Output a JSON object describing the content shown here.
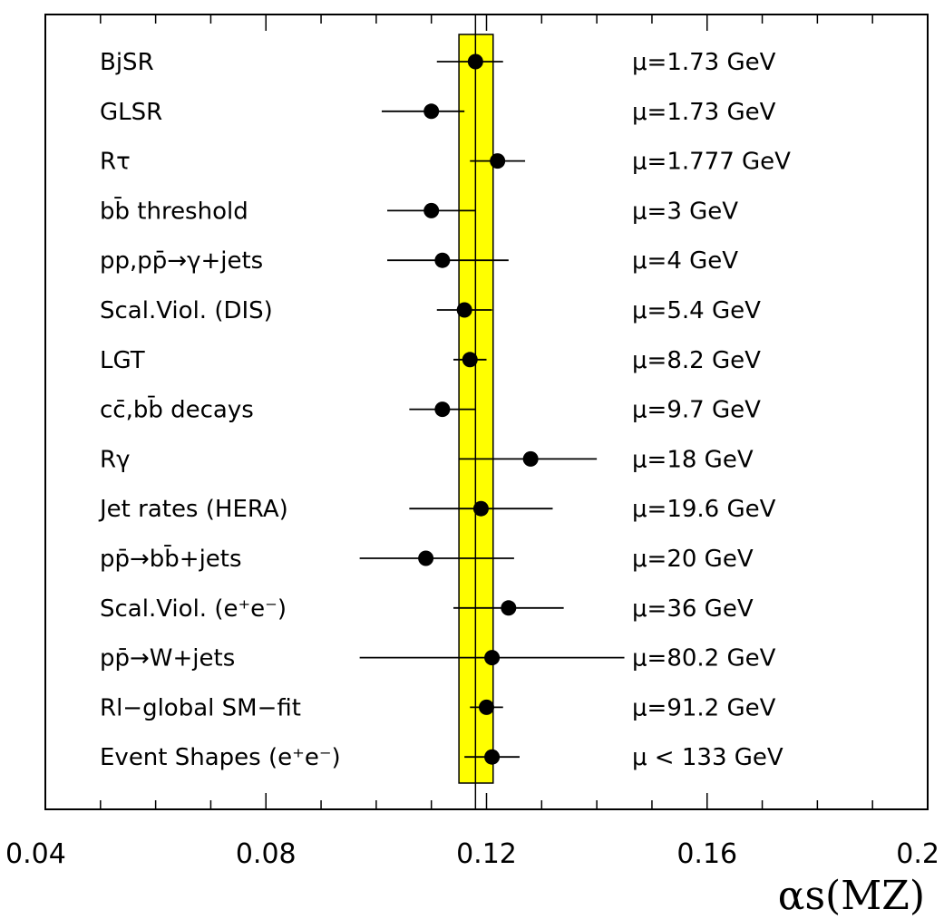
{
  "chart_data": {
    "type": "scatter",
    "xlim": [
      0.04,
      0.2
    ],
    "x_ticks": [
      "0.04",
      "0.08",
      "0.12",
      "0.16",
      "0.2"
    ],
    "xlabel": "αs(MZ)",
    "band": {
      "center": 0.118,
      "low": 0.115,
      "high": 0.1212,
      "color": "#ffff00"
    },
    "measurements": [
      {
        "label": "BjSR",
        "scale": "μ=1.73 GeV",
        "value": 0.118,
        "err_low": 0.111,
        "err_high": 0.123
      },
      {
        "label": "GLSR",
        "scale": "μ=1.73 GeV",
        "value": 0.11,
        "err_low": 0.101,
        "err_high": 0.116
      },
      {
        "label": "Rτ",
        "scale": "μ=1.777 GeV",
        "value": 0.122,
        "err_low": 0.117,
        "err_high": 0.127
      },
      {
        "label": "bb̄ threshold",
        "scale": "μ=3 GeV",
        "value": 0.11,
        "err_low": 0.102,
        "err_high": 0.118
      },
      {
        "label": "pp,pp̄→γ+jets",
        "scale": "μ=4 GeV",
        "value": 0.112,
        "err_low": 0.102,
        "err_high": 0.124
      },
      {
        "label": "Scal.Viol. (DIS)",
        "scale": "μ=5.4 GeV",
        "value": 0.116,
        "err_low": 0.111,
        "err_high": 0.121
      },
      {
        "label": "LGT",
        "scale": "μ=8.2 GeV",
        "value": 0.117,
        "err_low": 0.114,
        "err_high": 0.12
      },
      {
        "label": "cc̄,bb̄ decays",
        "scale": "μ=9.7 GeV",
        "value": 0.112,
        "err_low": 0.106,
        "err_high": 0.118
      },
      {
        "label": "Rγ",
        "scale": "μ=18 GeV",
        "value": 0.128,
        "err_low": 0.115,
        "err_high": 0.14
      },
      {
        "label": "Jet rates (HERA)",
        "scale": "μ=19.6 GeV",
        "value": 0.119,
        "err_low": 0.106,
        "err_high": 0.132
      },
      {
        "label": "pp̄→bb̄+jets",
        "scale": "μ=20 GeV",
        "value": 0.109,
        "err_low": 0.097,
        "err_high": 0.125
      },
      {
        "label": "Scal.Viol. (e⁺e⁻)",
        "scale": "μ=36 GeV",
        "value": 0.124,
        "err_low": 0.114,
        "err_high": 0.134
      },
      {
        "label": "pp̄→W+jets",
        "scale": "μ=80.2 GeV",
        "value": 0.121,
        "err_low": 0.097,
        "err_high": 0.145
      },
      {
        "label": "Rl−global SM−fit",
        "scale": "μ=91.2 GeV",
        "value": 0.12,
        "err_low": 0.117,
        "err_high": 0.123
      },
      {
        "label": "Event Shapes (e⁺e⁻)",
        "scale": "μ < 133 GeV",
        "value": 0.121,
        "err_low": 0.116,
        "err_high": 0.126
      }
    ]
  }
}
